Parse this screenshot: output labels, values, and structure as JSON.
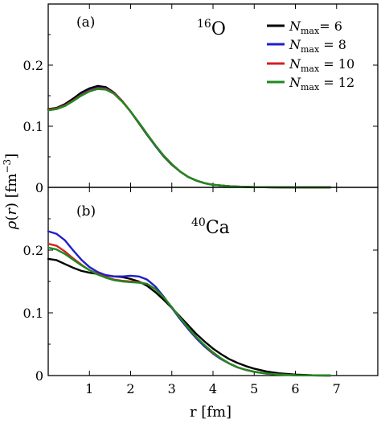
{
  "chart_data": [
    {
      "type": "line",
      "panel_label": "(a)",
      "nucleus": {
        "mass": "16",
        "symbol": "O"
      },
      "xlim": [
        0,
        8
      ],
      "ylim": [
        0,
        0.3
      ],
      "y_ticks": [
        "0",
        "0.1",
        "0.2"
      ],
      "y_tick_values": [
        0,
        0.1,
        0.2
      ],
      "series": [
        {
          "name": "N_max = 6",
          "color": "#000000",
          "x": [
            0.0,
            0.2,
            0.4,
            0.6,
            0.8,
            1.0,
            1.2,
            1.4,
            1.6,
            1.8,
            2.0,
            2.2,
            2.4,
            2.6,
            2.8,
            3.0,
            3.2,
            3.4,
            3.6,
            3.8,
            4.0,
            4.5,
            5.0,
            5.5,
            6.0,
            6.5,
            6.85
          ],
          "y": [
            0.128,
            0.13,
            0.136,
            0.145,
            0.155,
            0.162,
            0.166,
            0.164,
            0.155,
            0.141,
            0.124,
            0.105,
            0.086,
            0.068,
            0.051,
            0.037,
            0.026,
            0.017,
            0.011,
            0.0068,
            0.0042,
            0.0013,
            0.0004,
            0.0001,
            0.0,
            0.0,
            0.0
          ]
        },
        {
          "name": "N_max = 8",
          "color": "#1f1fc8",
          "x": [
            0.0,
            0.2,
            0.4,
            0.6,
            0.8,
            1.0,
            1.2,
            1.4,
            1.6,
            1.8,
            2.0,
            2.2,
            2.4,
            2.6,
            2.8,
            3.0,
            3.2,
            3.4,
            3.6,
            3.8,
            4.0,
            4.5,
            5.0,
            5.5,
            6.0,
            6.5,
            6.85
          ],
          "y": [
            0.127,
            0.129,
            0.134,
            0.142,
            0.152,
            0.159,
            0.163,
            0.162,
            0.154,
            0.141,
            0.124,
            0.106,
            0.087,
            0.068,
            0.052,
            0.038,
            0.026,
            0.017,
            0.011,
            0.0068,
            0.0042,
            0.0013,
            0.0004,
            0.0001,
            0.0,
            0.0,
            0.0
          ]
        },
        {
          "name": "N_max = 10",
          "color": "#d42020",
          "x": [
            0.0,
            0.2,
            0.4,
            0.6,
            0.8,
            1.0,
            1.2,
            1.4,
            1.6,
            1.8,
            2.0,
            2.2,
            2.4,
            2.6,
            2.8,
            3.0,
            3.2,
            3.4,
            3.6,
            3.8,
            4.0,
            4.5,
            5.0,
            5.5,
            6.0,
            6.5,
            6.85
          ],
          "y": [
            0.127,
            0.129,
            0.134,
            0.142,
            0.151,
            0.158,
            0.162,
            0.161,
            0.154,
            0.141,
            0.124,
            0.106,
            0.087,
            0.069,
            0.052,
            0.038,
            0.026,
            0.017,
            0.011,
            0.0068,
            0.0042,
            0.0013,
            0.0004,
            0.0001,
            0.0,
            0.0,
            0.0
          ]
        },
        {
          "name": "N_max = 12",
          "color": "#1e8a1e",
          "x": [
            0.0,
            0.2,
            0.4,
            0.6,
            0.8,
            1.0,
            1.2,
            1.4,
            1.6,
            1.8,
            2.0,
            2.2,
            2.4,
            2.6,
            2.8,
            3.0,
            3.2,
            3.4,
            3.6,
            3.8,
            4.0,
            4.5,
            5.0,
            5.5,
            6.0,
            6.5,
            6.85
          ],
          "y": [
            0.126,
            0.128,
            0.133,
            0.141,
            0.15,
            0.157,
            0.161,
            0.16,
            0.153,
            0.14,
            0.124,
            0.106,
            0.087,
            0.069,
            0.052,
            0.038,
            0.026,
            0.017,
            0.011,
            0.0068,
            0.0042,
            0.0013,
            0.0004,
            0.0001,
            0.0,
            0.0,
            0.0
          ]
        }
      ]
    },
    {
      "type": "line",
      "panel_label": "(b)",
      "nucleus": {
        "mass": "40",
        "symbol": "Ca"
      },
      "xlim": [
        0,
        8
      ],
      "ylim": [
        0,
        0.3
      ],
      "xlabel": "r [fm]",
      "x_ticks": [
        "1",
        "2",
        "3",
        "4",
        "5",
        "6",
        "7"
      ],
      "x_tick_values": [
        1,
        2,
        3,
        4,
        5,
        6,
        7
      ],
      "y_ticks": [
        "0",
        "0.1",
        "0.2"
      ],
      "y_tick_values": [
        0,
        0.1,
        0.2
      ],
      "series": [
        {
          "name": "N_max = 6",
          "color": "#000000",
          "x": [
            0.0,
            0.2,
            0.4,
            0.6,
            0.8,
            1.0,
            1.2,
            1.4,
            1.6,
            1.8,
            2.0,
            2.2,
            2.4,
            2.6,
            2.8,
            3.0,
            3.2,
            3.4,
            3.6,
            3.8,
            4.0,
            4.2,
            4.4,
            4.6,
            4.8,
            5.0,
            5.3,
            5.6,
            6.0,
            6.4,
            6.85
          ],
          "y": [
            0.186,
            0.184,
            0.178,
            0.172,
            0.167,
            0.164,
            0.162,
            0.16,
            0.158,
            0.157,
            0.154,
            0.15,
            0.143,
            0.133,
            0.121,
            0.108,
            0.094,
            0.08,
            0.066,
            0.054,
            0.043,
            0.034,
            0.026,
            0.02,
            0.015,
            0.011,
            0.0065,
            0.0036,
            0.0015,
            0.0005,
            0.0001
          ]
        },
        {
          "name": "N_max = 8",
          "color": "#1f1fc8",
          "x": [
            0.0,
            0.2,
            0.4,
            0.6,
            0.8,
            1.0,
            1.2,
            1.4,
            1.6,
            1.8,
            2.0,
            2.2,
            2.4,
            2.6,
            2.8,
            3.0,
            3.2,
            3.4,
            3.6,
            3.8,
            4.0,
            4.2,
            4.4,
            4.6,
            4.8,
            5.0,
            5.3,
            5.6,
            6.0,
            6.4,
            6.85
          ],
          "y": [
            0.23,
            0.226,
            0.216,
            0.2,
            0.185,
            0.173,
            0.165,
            0.16,
            0.158,
            0.158,
            0.159,
            0.158,
            0.153,
            0.142,
            0.126,
            0.108,
            0.09,
            0.074,
            0.059,
            0.046,
            0.035,
            0.026,
            0.019,
            0.013,
            0.009,
            0.006,
            0.0032,
            0.0016,
            0.0006,
            0.0002,
            0.0
          ]
        },
        {
          "name": "N_max = 10",
          "color": "#d42020",
          "x": [
            0.0,
            0.2,
            0.4,
            0.6,
            0.8,
            1.0,
            1.2,
            1.4,
            1.6,
            1.8,
            2.0,
            2.2,
            2.4,
            2.6,
            2.8,
            3.0,
            3.2,
            3.4,
            3.6,
            3.8,
            4.0,
            4.2,
            4.4,
            4.6,
            4.8,
            5.0,
            5.3,
            5.6,
            6.0,
            6.4,
            6.85
          ],
          "y": [
            0.21,
            0.207,
            0.198,
            0.187,
            0.177,
            0.168,
            0.162,
            0.157,
            0.153,
            0.151,
            0.15,
            0.149,
            0.146,
            0.138,
            0.125,
            0.109,
            0.092,
            0.076,
            0.061,
            0.048,
            0.036,
            0.027,
            0.019,
            0.013,
            0.009,
            0.006,
            0.0032,
            0.0016,
            0.0006,
            0.0002,
            0.0
          ]
        },
        {
          "name": "N_max = 12",
          "color": "#1e8a1e",
          "x": [
            0.0,
            0.2,
            0.4,
            0.6,
            0.8,
            1.0,
            1.2,
            1.4,
            1.6,
            1.8,
            2.0,
            2.2,
            2.4,
            2.6,
            2.8,
            3.0,
            3.2,
            3.4,
            3.6,
            3.8,
            4.0,
            4.2,
            4.4,
            4.6,
            4.8,
            5.0,
            5.3,
            5.6,
            6.0,
            6.4,
            6.85
          ],
          "y": [
            0.204,
            0.201,
            0.194,
            0.185,
            0.176,
            0.168,
            0.161,
            0.156,
            0.152,
            0.15,
            0.149,
            0.148,
            0.146,
            0.138,
            0.125,
            0.109,
            0.092,
            0.076,
            0.061,
            0.048,
            0.037,
            0.027,
            0.019,
            0.013,
            0.009,
            0.006,
            0.0032,
            0.0016,
            0.0006,
            0.0002,
            0.0
          ]
        }
      ]
    }
  ],
  "shared": {
    "ylabel": "ρ(r)  [fm",
    "ylabel_sup": "−3",
    "ylabel_close": "]",
    "legend_placement": "top-right of panel (a)",
    "legend": [
      {
        "base": "N",
        "sub": "max",
        "rest": "= 6",
        "color": "#000000"
      },
      {
        "base": "N",
        "sub": "max",
        "rest": " = 8",
        "color": "#1f1fc8"
      },
      {
        "base": "N",
        "sub": "max",
        "rest": " = 10",
        "color": "#d42020"
      },
      {
        "base": "N",
        "sub": "max",
        "rest": " = 12",
        "color": "#1e8a1e"
      }
    ]
  }
}
